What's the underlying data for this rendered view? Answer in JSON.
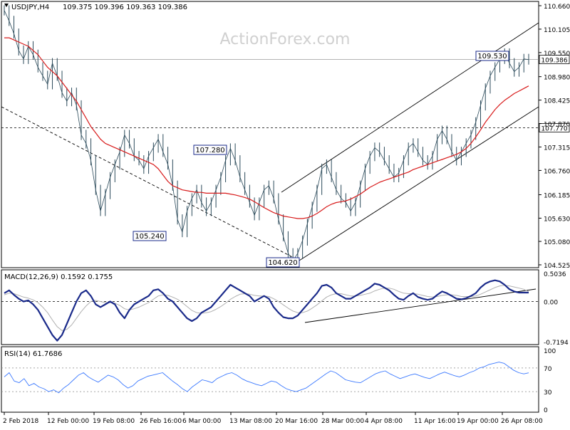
{
  "header": {
    "symbol": "USDJPY,H4",
    "ohlc": "109.375 109.396 109.363 109.386"
  },
  "watermark": "ActionForex.com",
  "colors": {
    "price": "#2b4a5a",
    "ma": "#d81b1b",
    "macd": "#1a2a8a",
    "signal": "#b0b0b0",
    "rsi": "#3a78ff",
    "label_border": "#1a2a8a",
    "grid": "#9a9a9a"
  },
  "chart_data": [
    {
      "type": "line",
      "panel": "price",
      "ylim": [
        104.525,
        110.66
      ],
      "y_ticks": [
        "110.660",
        "110.105",
        "109.550",
        "108.980",
        "108.425",
        "107.870",
        "107.315",
        "106.760",
        "106.185",
        "105.630",
        "105.080",
        "104.525"
      ],
      "x_ticks": [
        "2 Feb 2018",
        "12 Feb 00:00",
        "19 Feb 08:00",
        "26 Feb 16:00",
        "6 Mar 00:00",
        "13 Mar 08:00",
        "20 Mar 16:00",
        "28 Mar 00:00",
        "4 Apr 08:00",
        "11 Apr 16:00",
        "19 Apr 00:00",
        "26 Apr 08:00"
      ],
      "series": [
        {
          "role": "price",
          "values": [
            110.55,
            110.3,
            110.0,
            109.6,
            109.4,
            109.7,
            109.5,
            109.2,
            109.0,
            108.8,
            109.3,
            109.0,
            108.6,
            108.4,
            108.6,
            108.3,
            107.6,
            107.4,
            107.0,
            106.3,
            105.8,
            106.2,
            106.6,
            106.9,
            107.2,
            107.6,
            107.4,
            107.1,
            107.0,
            106.8,
            107.1,
            107.3,
            107.5,
            107.2,
            106.9,
            106.4,
            105.6,
            105.3,
            105.8,
            106.1,
            106.3,
            106.0,
            105.8,
            106.0,
            106.3,
            106.6,
            107.0,
            107.28,
            107.0,
            106.6,
            106.3,
            106.0,
            105.7,
            106.0,
            106.3,
            106.4,
            106.1,
            105.6,
            105.2,
            104.8,
            104.62,
            104.8,
            105.1,
            105.5,
            105.9,
            106.3,
            106.8,
            106.9,
            106.6,
            106.3,
            106.1,
            106.0,
            105.8,
            106.0,
            106.4,
            106.8,
            107.1,
            107.3,
            107.2,
            107.0,
            106.8,
            106.6,
            106.7,
            107.0,
            107.3,
            107.4,
            107.2,
            107.0,
            106.9,
            107.1,
            107.5,
            107.7,
            107.5,
            107.2,
            107.0,
            107.2,
            107.4,
            107.6,
            107.9,
            108.3,
            108.7,
            109.0,
            109.2,
            109.4,
            109.53,
            109.3,
            109.1,
            109.2,
            109.4,
            109.386
          ]
        },
        {
          "name": "MA",
          "role": "ma",
          "values": [
            109.9,
            109.9,
            109.85,
            109.8,
            109.75,
            109.7,
            109.6,
            109.5,
            109.35,
            109.2,
            109.1,
            109.0,
            108.85,
            108.7,
            108.55,
            108.4,
            108.2,
            108.0,
            107.8,
            107.65,
            107.5,
            107.4,
            107.35,
            107.3,
            107.25,
            107.2,
            107.15,
            107.1,
            107.05,
            107.0,
            106.95,
            106.9,
            106.8,
            106.65,
            106.5,
            106.4,
            106.35,
            106.3,
            106.28,
            106.26,
            106.24,
            106.24,
            106.22,
            106.22,
            106.22,
            106.22,
            106.22,
            106.2,
            106.18,
            106.15,
            106.12,
            106.08,
            106.02,
            105.95,
            105.88,
            105.82,
            105.76,
            105.72,
            105.68,
            105.66,
            105.64,
            105.62,
            105.62,
            105.64,
            105.68,
            105.74,
            105.82,
            105.9,
            105.96,
            106.0,
            106.02,
            106.04,
            106.08,
            106.14,
            106.2,
            106.28,
            106.36,
            106.42,
            106.48,
            106.52,
            106.56,
            106.6,
            106.64,
            106.68,
            106.72,
            106.78,
            106.82,
            106.86,
            106.9,
            106.94,
            106.98,
            107.02,
            107.06,
            107.1,
            107.14,
            107.2,
            107.28,
            107.4,
            107.55,
            107.72,
            107.9,
            108.05,
            108.2,
            108.32,
            108.42,
            108.5,
            108.58,
            108.64,
            108.7,
            108.76
          ]
        }
      ],
      "annotations": [
        {
          "text": "109.530",
          "value": 109.53
        },
        {
          "text": "107.280",
          "value": 107.28
        },
        {
          "text": "105.240",
          "value": 105.24
        },
        {
          "text": "104.620",
          "value": 104.62
        }
      ],
      "current_price_label": "109.386",
      "level_label": "107.770",
      "level_value": 107.77
    },
    {
      "type": "line",
      "panel": "macd",
      "title": "MACD(12,26,9) 0.1592 0.1755",
      "ylim": [
        -0.7194,
        0.5036
      ],
      "y_ticks": [
        "0.5036",
        "0.00",
        "-0.7194"
      ],
      "series": [
        {
          "role": "macd",
          "values": [
            0.15,
            0.2,
            0.12,
            0.05,
            0.0,
            0.02,
            -0.05,
            -0.15,
            -0.3,
            -0.45,
            -0.6,
            -0.7,
            -0.6,
            -0.4,
            -0.2,
            0.0,
            0.15,
            0.2,
            0.1,
            -0.05,
            -0.1,
            -0.05,
            0.0,
            -0.05,
            -0.2,
            -0.3,
            -0.15,
            -0.05,
            0.0,
            0.05,
            0.1,
            0.2,
            0.22,
            0.15,
            0.05,
            0.0,
            -0.1,
            -0.2,
            -0.3,
            -0.35,
            -0.3,
            -0.2,
            -0.15,
            -0.1,
            0.0,
            0.1,
            0.2,
            0.3,
            0.25,
            0.2,
            0.15,
            0.1,
            0.0,
            0.05,
            0.1,
            0.05,
            -0.1,
            -0.2,
            -0.28,
            -0.3,
            -0.3,
            -0.25,
            -0.15,
            -0.05,
            0.05,
            0.15,
            0.28,
            0.3,
            0.25,
            0.15,
            0.1,
            0.05,
            0.05,
            0.1,
            0.15,
            0.2,
            0.25,
            0.32,
            0.3,
            0.25,
            0.2,
            0.12,
            0.05,
            0.03,
            0.1,
            0.15,
            0.08,
            0.05,
            0.03,
            0.05,
            0.12,
            0.18,
            0.15,
            0.1,
            0.05,
            0.04,
            0.06,
            0.1,
            0.15,
            0.25,
            0.32,
            0.36,
            0.38,
            0.36,
            0.3,
            0.22,
            0.18,
            0.16,
            0.16,
            0.1592
          ]
        },
        {
          "name": "Signal",
          "role": "signal",
          "values": [
            0.12,
            0.15,
            0.14,
            0.11,
            0.08,
            0.06,
            0.03,
            -0.02,
            -0.1,
            -0.2,
            -0.33,
            -0.45,
            -0.52,
            -0.5,
            -0.42,
            -0.3,
            -0.18,
            -0.08,
            0.0,
            0.02,
            0.0,
            -0.02,
            -0.02,
            -0.03,
            -0.07,
            -0.13,
            -0.15,
            -0.13,
            -0.1,
            -0.06,
            -0.02,
            0.04,
            0.1,
            0.12,
            0.11,
            0.08,
            0.04,
            -0.02,
            -0.09,
            -0.16,
            -0.2,
            -0.21,
            -0.2,
            -0.18,
            -0.14,
            -0.09,
            -0.03,
            0.04,
            0.09,
            0.13,
            0.14,
            0.13,
            0.11,
            0.1,
            0.1,
            0.09,
            0.05,
            0.0,
            -0.06,
            -0.12,
            -0.17,
            -0.2,
            -0.2,
            -0.17,
            -0.12,
            -0.06,
            0.01,
            0.08,
            0.12,
            0.14,
            0.14,
            0.12,
            0.1,
            0.1,
            0.11,
            0.13,
            0.15,
            0.19,
            0.22,
            0.24,
            0.24,
            0.22,
            0.18,
            0.15,
            0.14,
            0.14,
            0.13,
            0.11,
            0.09,
            0.08,
            0.09,
            0.11,
            0.12,
            0.12,
            0.11,
            0.09,
            0.09,
            0.09,
            0.1,
            0.13,
            0.17,
            0.21,
            0.25,
            0.28,
            0.29,
            0.28,
            0.26,
            0.24,
            0.22,
            0.1755
          ]
        }
      ]
    },
    {
      "type": "line",
      "panel": "rsi",
      "title": "RSI(14) 61.7686",
      "ylim": [
        0,
        100
      ],
      "y_ticks": [
        "100",
        "70",
        "30",
        "0"
      ],
      "levels": [
        70,
        30
      ],
      "series": [
        {
          "role": "rsi",
          "values": [
            55,
            62,
            48,
            45,
            52,
            40,
            44,
            38,
            35,
            30,
            33,
            28,
            36,
            42,
            50,
            58,
            62,
            55,
            50,
            46,
            52,
            58,
            55,
            50,
            42,
            36,
            40,
            48,
            52,
            56,
            58,
            60,
            62,
            55,
            48,
            42,
            35,
            30,
            38,
            44,
            50,
            48,
            45,
            52,
            56,
            60,
            62,
            58,
            52,
            48,
            45,
            42,
            40,
            44,
            48,
            46,
            40,
            35,
            32,
            30,
            33,
            36,
            42,
            48,
            54,
            60,
            65,
            62,
            56,
            50,
            48,
            46,
            45,
            50,
            55,
            60,
            63,
            65,
            60,
            56,
            52,
            55,
            58,
            60,
            57,
            54,
            52,
            56,
            60,
            63,
            60,
            57,
            55,
            58,
            62,
            65,
            70,
            72,
            76,
            78,
            80,
            78,
            72,
            66,
            62,
            60,
            61.7686
          ]
        }
      ]
    }
  ]
}
